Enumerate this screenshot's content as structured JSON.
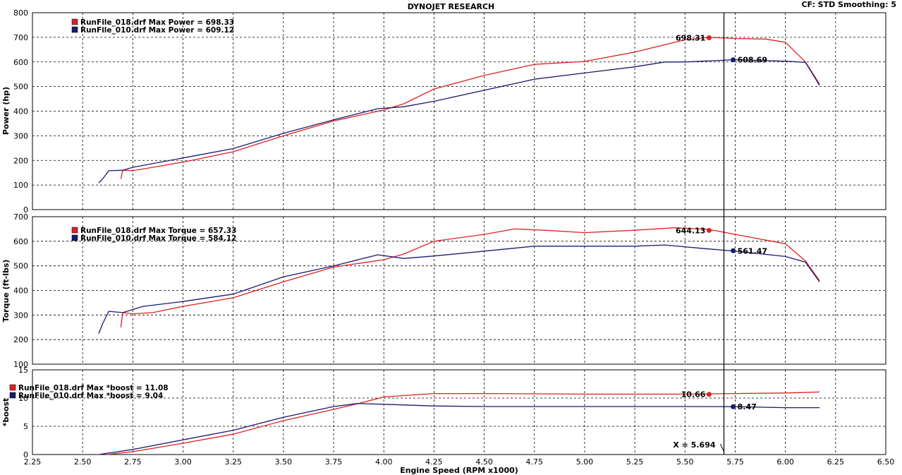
{
  "header": {
    "title": "DYNOJET RESEARCH",
    "cf_info": "CF: STD  Smoothing: 5"
  },
  "colors": {
    "run018": "#e02020",
    "run010": "#1a1a70",
    "grid": "#000000",
    "panel_border": "#000000"
  },
  "chart_data": [
    {
      "type": "line",
      "title": "DYNOJET RESEARCH",
      "xlabel": "Engine Speed (RPM x1000)",
      "ylabel": "Power (hp)",
      "xlim": [
        2.25,
        6.5
      ],
      "ylim": [
        0,
        800
      ],
      "yticks": [
        "0",
        "100",
        "200",
        "300",
        "400",
        "500",
        "600",
        "700",
        "800"
      ],
      "grid": true,
      "legend": [
        "RunFile_018.drf Max Power = 698.33",
        "RunFile_010.drf Max Power = 609.12"
      ],
      "cursor_labels": [
        {
          "series": "RunFile_018.drf",
          "x": 5.62,
          "y": 698.31,
          "text": "698.31"
        },
        {
          "series": "RunFile_010.drf",
          "x": 5.74,
          "y": 608.69,
          "text": "608.69"
        }
      ],
      "series": [
        {
          "name": "RunFile_018.drf",
          "x": [
            2.69,
            2.7,
            2.75,
            2.85,
            3.0,
            3.25,
            3.5,
            3.75,
            4.0,
            4.1,
            4.25,
            4.5,
            4.75,
            5.0,
            5.25,
            5.5,
            5.62,
            5.75,
            5.9,
            6.0,
            6.1,
            6.17
          ],
          "y": [
            125,
            160,
            158,
            172,
            193,
            235,
            300,
            360,
            405,
            430,
            490,
            545,
            590,
            602,
            640,
            690,
            700,
            695,
            693,
            680,
            600,
            510
          ]
        },
        {
          "name": "RunFile_010.drf",
          "x": [
            2.58,
            2.6,
            2.63,
            2.7,
            2.75,
            3.0,
            3.25,
            3.5,
            3.75,
            3.97,
            4.1,
            4.25,
            4.5,
            4.75,
            5.0,
            5.25,
            5.4,
            5.5,
            5.75,
            6.0,
            6.1,
            6.17
          ],
          "y": [
            108,
            125,
            158,
            160,
            172,
            210,
            248,
            310,
            365,
            410,
            418,
            440,
            485,
            530,
            555,
            580,
            600,
            600,
            609,
            603,
            598,
            505
          ]
        }
      ]
    },
    {
      "type": "line",
      "xlabel": "Engine Speed (RPM x1000)",
      "ylabel": "Torque (ft-lbs)",
      "xlim": [
        2.25,
        6.5
      ],
      "ylim": [
        100,
        700
      ],
      "yticks": [
        "100",
        "200",
        "300",
        "400",
        "500",
        "600",
        "700"
      ],
      "grid": true,
      "legend": [
        "RunFile_018.drf Max Torque = 657.33",
        "RunFile_010.drf Max Torque = 584.12"
      ],
      "cursor_labels": [
        {
          "series": "RunFile_018.drf",
          "x": 5.62,
          "y": 644.13,
          "text": "644.13"
        },
        {
          "series": "RunFile_010.drf",
          "x": 5.74,
          "y": 561.47,
          "text": "561.47"
        }
      ],
      "series": [
        {
          "name": "RunFile_018.drf",
          "x": [
            2.69,
            2.7,
            2.75,
            2.85,
            3.0,
            3.25,
            3.5,
            3.75,
            4.0,
            4.1,
            4.25,
            4.5,
            4.65,
            4.8,
            5.0,
            5.25,
            5.45,
            5.62,
            5.75,
            6.0,
            6.1,
            6.17
          ],
          "y": [
            250,
            310,
            305,
            310,
            335,
            370,
            435,
            495,
            525,
            548,
            600,
            628,
            650,
            645,
            635,
            645,
            655,
            648,
            628,
            590,
            520,
            440
          ]
        },
        {
          "name": "RunFile_010.drf",
          "x": [
            2.58,
            2.6,
            2.63,
            2.7,
            2.8,
            3.0,
            3.25,
            3.5,
            3.75,
            3.97,
            4.1,
            4.25,
            4.5,
            4.75,
            5.0,
            5.25,
            5.4,
            5.6,
            5.75,
            6.0,
            6.1,
            6.17
          ],
          "y": [
            225,
            265,
            315,
            310,
            335,
            355,
            385,
            455,
            500,
            545,
            530,
            540,
            560,
            580,
            580,
            580,
            585,
            570,
            560,
            538,
            515,
            435
          ]
        }
      ]
    },
    {
      "type": "line",
      "xlabel": "Engine Speed (RPM x1000)",
      "ylabel": "*boost",
      "xlim": [
        2.25,
        6.5
      ],
      "ylim": [
        0,
        15
      ],
      "yticks": [
        "0",
        "5",
        "10",
        "15"
      ],
      "xticks": [
        "2.25",
        "2.50",
        "2.75",
        "3.00",
        "3.25",
        "3.50",
        "3.75",
        "4.00",
        "4.25",
        "4.50",
        "4.75",
        "5.00",
        "5.25",
        "5.50",
        "5.75",
        "6.00",
        "6.25",
        "6.50"
      ],
      "grid": true,
      "legend": [
        "RunFile_018.drf Max *boost = 11.08",
        "RunFile_010.drf Max *boost = 9.04"
      ],
      "cursor_labels": [
        {
          "series": "RunFile_018.drf",
          "x": 5.62,
          "y": 10.66,
          "text": "10.66"
        },
        {
          "series": "RunFile_010.drf",
          "x": 5.74,
          "y": 8.47,
          "text": "8.47"
        }
      ],
      "cursor_x_label": "X = 5.694",
      "series": [
        {
          "name": "RunFile_018.drf",
          "x": [
            2.62,
            2.75,
            3.0,
            3.25,
            3.5,
            3.75,
            3.87,
            4.0,
            4.25,
            4.5,
            5.0,
            5.5,
            6.0,
            6.17
          ],
          "y": [
            0,
            0.5,
            2.0,
            3.6,
            6.0,
            8.0,
            9.0,
            10.2,
            10.8,
            10.8,
            10.7,
            10.7,
            10.9,
            11.08
          ]
        },
        {
          "name": "RunFile_010.drf",
          "x": [
            2.58,
            2.75,
            3.0,
            3.25,
            3.5,
            3.75,
            3.87,
            4.0,
            4.25,
            4.5,
            5.0,
            5.5,
            5.75,
            6.0,
            6.17
          ],
          "y": [
            0,
            0.9,
            2.6,
            4.3,
            6.6,
            8.5,
            9.04,
            8.9,
            8.6,
            8.5,
            8.5,
            8.5,
            8.47,
            8.3,
            8.3
          ]
        }
      ]
    }
  ]
}
